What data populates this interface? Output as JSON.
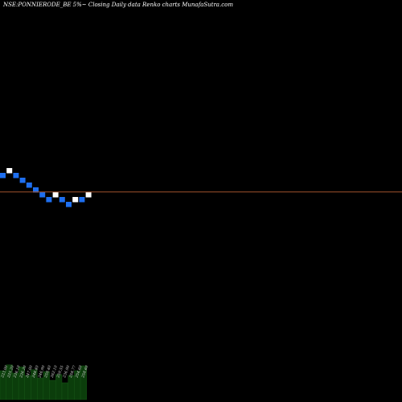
{
  "title": "NSE:PONNIERODE_BE 5%~  Closing Daily data  Renko  charts MunafaSutra.com",
  "chart_data": {
    "type": "renko",
    "brick_size_label": "5%",
    "bricks": [
      {
        "row": 0,
        "color": "#1e6ff0"
      },
      {
        "row": 1,
        "color": "#ffffff"
      },
      {
        "row": 0,
        "color": "#1e6ff0"
      },
      {
        "row": -1,
        "color": "#1e6ff0"
      },
      {
        "row": -2,
        "color": "#1e6ff0"
      },
      {
        "row": -3,
        "color": "#1e6ff0"
      },
      {
        "row": -4,
        "color": "#1e6ff0"
      },
      {
        "row": -5,
        "color": "#1e6ff0"
      },
      {
        "row": -4,
        "color": "#ffffff"
      },
      {
        "row": -5,
        "color": "#1e6ff0"
      },
      {
        "row": -6,
        "color": "#1e6ff0"
      },
      {
        "row": -5,
        "color": "#ffffff"
      },
      {
        "row": -5,
        "color": "#1e6ff0"
      },
      {
        "row": -4,
        "color": "#ffffff"
      }
    ],
    "reference_line": {
      "row": -3.3,
      "color": "#a0522d"
    },
    "date_labels": [
      "223.00",
      "225.20",
      "236.10",
      "236.20",
      "247.00",
      "248.40",
      "246.90",
      "259.40",
      "262.10",
      "259.55",
      "236.90",
      "258.77",
      "254.60",
      "258.60"
    ],
    "volume_bars": [
      0.6,
      0.72,
      0.55,
      0.68,
      0.5,
      0.62,
      0.45,
      0.58,
      0.4,
      0.52,
      0.35,
      0.5,
      0.6,
      0.7
    ],
    "colors": {
      "up": "#ffffff",
      "down": "#1e6ff0",
      "volume": "#0b3d0b",
      "volume_edge": "#1a5c1a",
      "label": "#d8d8d8"
    }
  }
}
